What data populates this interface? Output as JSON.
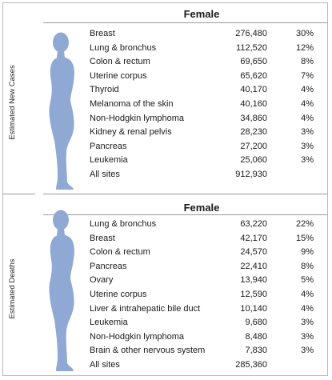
{
  "colors": {
    "figure": "#8fa8d4",
    "border": "#b9b9b9",
    "rule": "#9a9a9a"
  },
  "new_cases": {
    "side_label": "Estimated New Cases",
    "title": "Female",
    "rows": [
      {
        "site": "Breast",
        "count": "276,480",
        "pct": "30%"
      },
      {
        "site": "Lung & bronchus",
        "count": "112,520",
        "pct": "12%"
      },
      {
        "site": "Colon & rectum",
        "count": "69,650",
        "pct": "8%"
      },
      {
        "site": "Uterine corpus",
        "count": "65,620",
        "pct": "7%"
      },
      {
        "site": "Thyroid",
        "count": "40,170",
        "pct": "4%"
      },
      {
        "site": "Melanoma of the skin",
        "count": "40,160",
        "pct": "4%"
      },
      {
        "site": "Non-Hodgkin lymphoma",
        "count": "34,860",
        "pct": "4%"
      },
      {
        "site": "Kidney & renal pelvis",
        "count": "28,230",
        "pct": "3%"
      },
      {
        "site": "Pancreas",
        "count": "27,200",
        "pct": "3%"
      },
      {
        "site": "Leukemia",
        "count": "25,060",
        "pct": "3%"
      },
      {
        "site": "All sites",
        "count": "912,930",
        "pct": ""
      }
    ]
  },
  "deaths": {
    "side_label": "Estimated Deaths",
    "title": "Female",
    "rows": [
      {
        "site": "Lung & bronchus",
        "count": "63,220",
        "pct": "22%"
      },
      {
        "site": "Breast",
        "count": "42,170",
        "pct": "15%"
      },
      {
        "site": "Colon & rectum",
        "count": "24,570",
        "pct": "9%"
      },
      {
        "site": "Pancreas",
        "count": "22,410",
        "pct": "8%"
      },
      {
        "site": "Ovary",
        "count": "13,940",
        "pct": "5%"
      },
      {
        "site": "Uterine corpus",
        "count": "12,590",
        "pct": "4%"
      },
      {
        "site": "Liver & intrahepatic bile duct",
        "count": "10,140",
        "pct": "4%"
      },
      {
        "site": "Leukemia",
        "count": "9,680",
        "pct": "3%"
      },
      {
        "site": "Non-Hodgkin lymphoma",
        "count": "8,480",
        "pct": "3%"
      },
      {
        "site": "Brain & other nervous system",
        "count": "7,830",
        "pct": "3%"
      },
      {
        "site": "All sites",
        "count": "285,360",
        "pct": ""
      }
    ]
  }
}
